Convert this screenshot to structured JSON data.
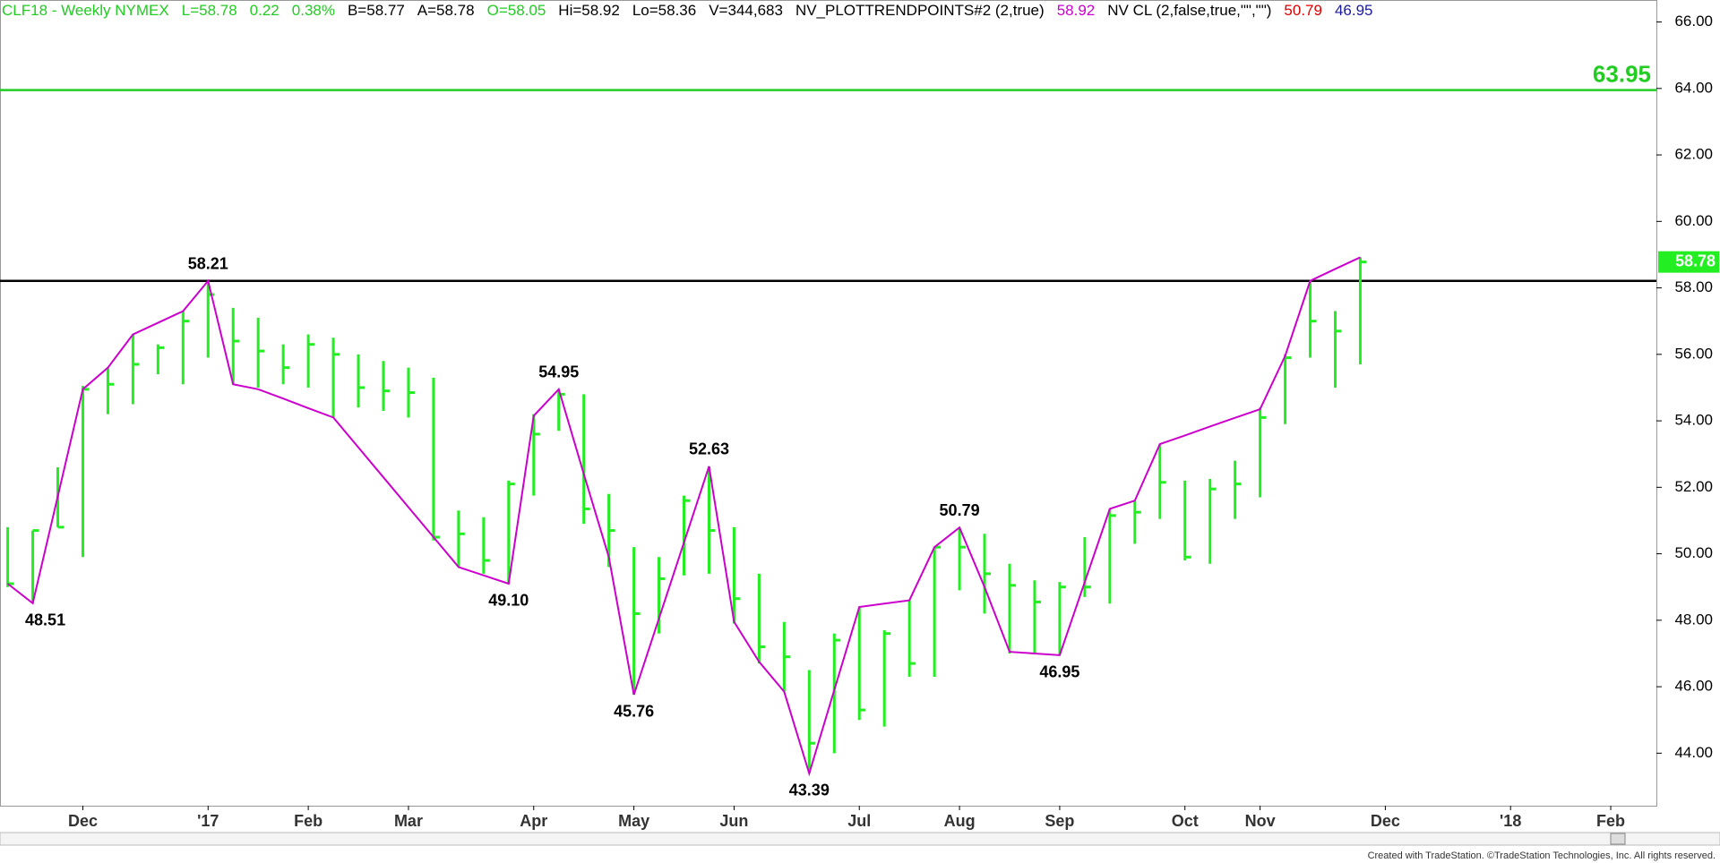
{
  "chart_data": {
    "type": "ohlc",
    "header": [
      {
        "text": "CLF18 - Weekly  NYMEX",
        "color": "#22cc22"
      },
      {
        "text": "L=58.78",
        "color": "#22cc22"
      },
      {
        "text": "0.22",
        "color": "#22cc22"
      },
      {
        "text": "0.38%",
        "color": "#22cc22"
      },
      {
        "text": "B=58.77",
        "color": "#000000"
      },
      {
        "text": "A=58.78",
        "color": "#000000"
      },
      {
        "text": "O=58.05",
        "color": "#22cc22"
      },
      {
        "text": "Hi=58.92",
        "color": "#000000"
      },
      {
        "text": "Lo=58.36",
        "color": "#000000"
      },
      {
        "text": "V=344,683",
        "color": "#000000"
      },
      {
        "text": "NV_PLOTTRENDPOINTS#2 (2,true)",
        "color": "#000000"
      },
      {
        "text": "58.92",
        "color": "#cc00cc"
      },
      {
        "text": "NV CL (2,false,true,\"\",\"\")",
        "color": "#000000"
      },
      {
        "text": "50.79",
        "color": "#dd0000"
      },
      {
        "text": "46.95",
        "color": "#1a1aa0"
      }
    ],
    "categories": [
      null,
      null,
      null,
      "Dec",
      null,
      null,
      null,
      null,
      "'17",
      null,
      null,
      null,
      "Feb",
      null,
      null,
      null,
      "Mar",
      null,
      null,
      null,
      null,
      "Apr",
      null,
      null,
      null,
      "May",
      null,
      null,
      null,
      "Jun",
      null,
      null,
      null,
      null,
      "Jul",
      null,
      null,
      null,
      "Aug",
      null,
      null,
      null,
      "Sep",
      null,
      null,
      null,
      null,
      "Oct",
      null,
      null,
      "Nov",
      null,
      null,
      null,
      null,
      "Dec",
      null,
      null,
      null,
      null,
      "'18",
      null,
      null,
      null,
      "Feb",
      null
    ],
    "high": [
      50.8,
      50.7,
      52.6,
      55.05,
      55.6,
      56.6,
      56.3,
      57.3,
      58.21,
      57.4,
      57.1,
      56.3,
      56.6,
      56.5,
      56.0,
      55.8,
      55.6,
      55.3,
      51.3,
      51.1,
      52.2,
      54.2,
      54.95,
      54.8,
      51.8,
      50.2,
      49.9,
      51.75,
      52.63,
      50.8,
      49.4,
      47.95,
      46.5,
      47.6,
      48.4,
      47.7,
      48.6,
      50.2,
      50.79,
      50.6,
      49.7,
      49.2,
      49.15,
      50.5,
      51.35,
      51.6,
      53.3,
      52.2,
      52.25,
      52.8,
      54.4,
      56.0,
      58.21,
      57.3,
      58.92,
      null,
      null,
      null,
      null,
      null,
      null,
      null,
      null,
      null,
      null,
      null
    ],
    "low": [
      49.0,
      48.51,
      50.8,
      49.9,
      54.2,
      54.5,
      55.4,
      55.1,
      55.9,
      55.1,
      55.0,
      55.1,
      55.0,
      54.1,
      54.4,
      54.3,
      54.1,
      50.4,
      49.6,
      49.4,
      49.1,
      51.75,
      53.7,
      50.9,
      49.6,
      45.76,
      47.6,
      49.35,
      49.4,
      47.9,
      46.7,
      45.85,
      43.39,
      44.0,
      45.0,
      44.8,
      46.3,
      46.3,
      48.9,
      48.2,
      47.0,
      47.0,
      46.95,
      48.7,
      48.5,
      50.3,
      51.05,
      49.8,
      49.7,
      51.05,
      51.7,
      53.9,
      55.9,
      55.0,
      55.7,
      null,
      null,
      null,
      null,
      null,
      null,
      null,
      null,
      null,
      null,
      null
    ],
    "close": [
      49.1,
      50.7,
      50.8,
      54.95,
      55.1,
      55.7,
      56.2,
      57.0,
      57.8,
      56.4,
      56.1,
      55.6,
      56.3,
      56.0,
      55.0,
      54.9,
      54.85,
      50.5,
      50.6,
      49.8,
      52.1,
      53.6,
      54.8,
      51.35,
      50.7,
      48.2,
      49.25,
      51.6,
      50.7,
      48.65,
      47.2,
      46.9,
      44.3,
      47.4,
      45.3,
      47.6,
      46.7,
      50.2,
      50.2,
      49.4,
      49.05,
      48.55,
      49.0,
      49.0,
      51.15,
      51.25,
      52.15,
      49.9,
      51.95,
      52.1,
      54.1,
      55.9,
      57.0,
      56.7,
      58.78,
      null,
      null,
      null,
      null,
      null,
      null,
      null,
      null,
      null,
      null,
      null
    ],
    "bar_color": "#22ee22",
    "trend": {
      "color": "#cc00cc",
      "values": [
        49.1,
        48.51,
        51.73,
        54.95,
        55.6,
        56.6,
        56.95,
        57.3,
        58.21,
        55.1,
        54.95,
        54.67,
        54.38,
        54.1,
        53.2,
        52.3,
        51.4,
        50.5,
        49.6,
        49.35,
        49.1,
        54.15,
        54.95,
        52.4,
        49.9,
        45.76,
        48.05,
        50.34,
        52.63,
        47.95,
        46.75,
        45.85,
        43.39,
        45.9,
        48.4,
        48.5,
        48.6,
        50.2,
        50.79,
        49.0,
        47.05,
        47.0,
        46.95,
        49.15,
        51.35,
        51.6,
        53.3,
        53.56,
        53.83,
        54.09,
        54.35,
        55.95,
        58.21,
        58.57,
        58.92,
        null,
        null,
        null,
        null,
        null,
        null,
        null,
        null,
        null,
        null,
        null
      ],
      "value_labels": [
        null,
        "48.51",
        null,
        null,
        null,
        null,
        null,
        null,
        "58.21",
        null,
        null,
        null,
        null,
        null,
        null,
        null,
        null,
        null,
        null,
        null,
        "49.10",
        null,
        "54.95",
        null,
        null,
        "45.76",
        null,
        null,
        "52.63",
        null,
        null,
        null,
        "43.39",
        null,
        null,
        null,
        null,
        null,
        "50.79",
        null,
        null,
        null,
        "46.95",
        null,
        null,
        null,
        null,
        null,
        null,
        null,
        null,
        null,
        null,
        null,
        null,
        null,
        null,
        null,
        null,
        null,
        null,
        null,
        null,
        null,
        null,
        null
      ]
    },
    "hlines": [
      {
        "value": 63.95,
        "color": "#22cc22",
        "label": "63.95"
      },
      {
        "value": 58.21,
        "color": "#000000"
      }
    ],
    "last_price": 58.78,
    "ylim": [
      42.42,
      66.5
    ],
    "yticks": [
      {
        "value": 44,
        "label": "44.00"
      },
      {
        "value": 46,
        "label": "46.00"
      },
      {
        "value": 48,
        "label": "48.00"
      },
      {
        "value": 50,
        "label": "50.00"
      },
      {
        "value": 52,
        "label": "52.00"
      },
      {
        "value": 54,
        "label": "54.00"
      },
      {
        "value": 56,
        "label": "56.00"
      },
      {
        "value": 58,
        "label": "58.00"
      },
      {
        "value": 60,
        "label": "60.00"
      },
      {
        "value": 62,
        "label": "62.00"
      },
      {
        "value": 64,
        "label": "64.00"
      },
      {
        "value": 66,
        "label": "66.00"
      }
    ],
    "footer": "Created with TradeStation. ©TradeStation Technologies, Inc. All rights reserved."
  }
}
